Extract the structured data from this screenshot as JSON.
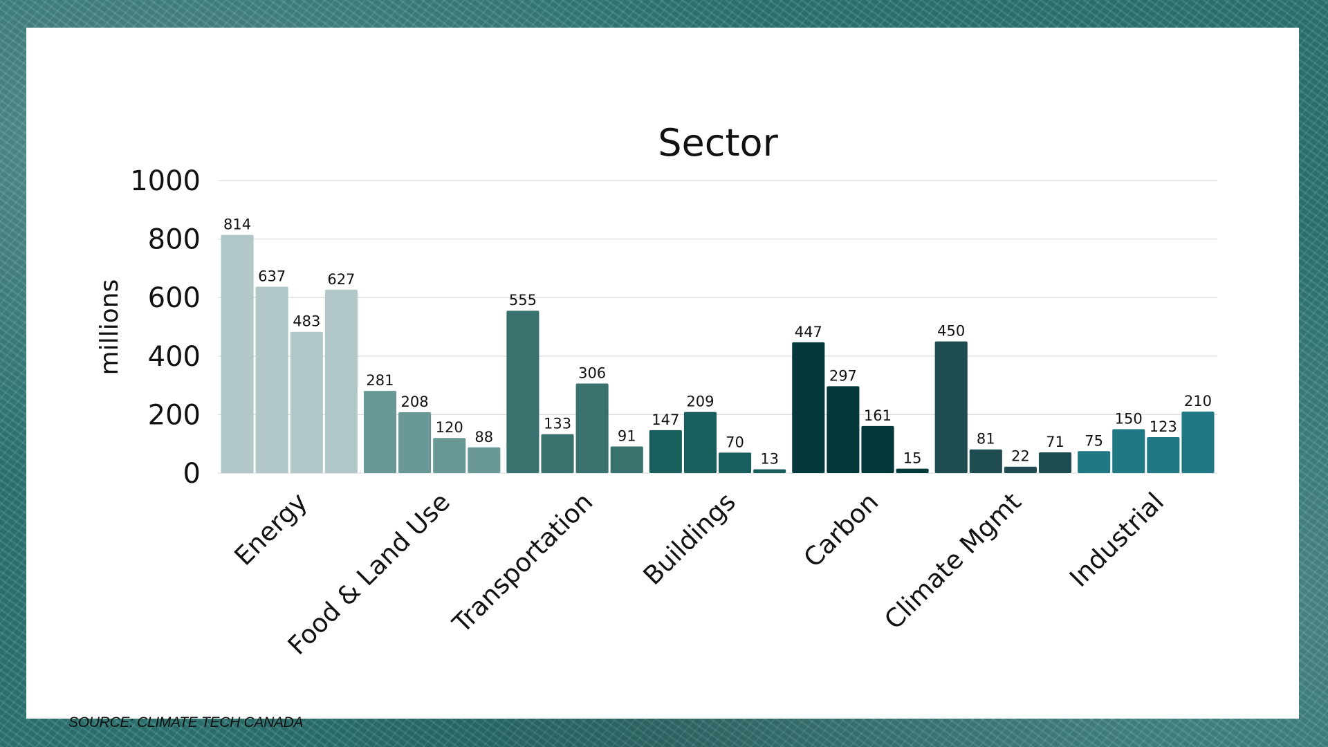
{
  "source_text": "SOURCE: CLIMATE TECH CANADA",
  "chart_data": {
    "type": "bar",
    "title": "Sector",
    "xlabel": "",
    "ylabel": "millions",
    "ylim": [
      0,
      1000
    ],
    "yticks": [
      0,
      200,
      400,
      600,
      800,
      1000
    ],
    "grid": true,
    "categories": [
      {
        "name": "Energy",
        "color": "#b1c7c8",
        "values": [
          814,
          637,
          483,
          627
        ]
      },
      {
        "name": "Food & Land Use",
        "color": "#6a9896",
        "values": [
          281,
          208,
          120,
          88
        ]
      },
      {
        "name": "Transportation",
        "color": "#38716e",
        "values": [
          555,
          133,
          306,
          91
        ]
      },
      {
        "name": "Buildings",
        "color": "#175e5c",
        "values": [
          147,
          209,
          70,
          13
        ]
      },
      {
        "name": "Carbon",
        "color": "#03393a",
        "values": [
          447,
          297,
          161,
          15
        ]
      },
      {
        "name": "Climate Mgmt",
        "color": "#1e4c50",
        "values": [
          450,
          81,
          22,
          71
        ]
      },
      {
        "name": "Industrial",
        "color": "#217885",
        "values": [
          75,
          150,
          123,
          210
        ]
      }
    ]
  }
}
